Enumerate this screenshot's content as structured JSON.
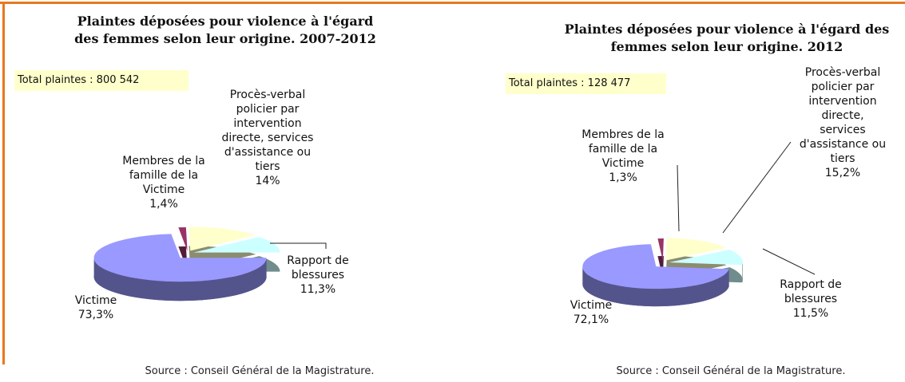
{
  "chart_data": [
    {
      "type": "pie",
      "title": "Plaintes déposées pour violence à l'égard des femmes selon leur origine. 2007-2012",
      "annotation": "Total plaintes : 800 542",
      "source": "Source : Conseil Général de la Magistrature.",
      "categories": [
        "Membres de la famille de la Victime",
        "Procès-verbal policier par intervention directe, services d'assistance ou tiers",
        "Rapport de blessures",
        "Victime"
      ],
      "values": [
        1.4,
        14,
        11.3,
        73.3
      ],
      "value_labels": [
        "1,4%",
        "14%",
        "11,3%",
        "73,3%"
      ],
      "colors": [
        "#993366",
        "#ffffcc",
        "#ccffff",
        "#9999ff"
      ]
    },
    {
      "type": "pie",
      "title": "Plaintes déposées pour violence à l'égard des femmes selon leur origine. 2012",
      "annotation": "Total plaintes : 128 477",
      "source": "Source : Conseil Général de la Magistrature.",
      "categories": [
        "Membres de la famille de la Victime",
        "Procès-verbal policier par intervention directe, services d'assistance ou tiers",
        "Rapport de blessures",
        "Victime"
      ],
      "values": [
        1.3,
        15.2,
        11.5,
        72.1
      ],
      "value_labels": [
        "1,3%",
        "15,2%",
        "11,5%",
        "72,1%"
      ],
      "colors": [
        "#993366",
        "#ffffcc",
        "#ccffff",
        "#9999ff"
      ]
    }
  ]
}
